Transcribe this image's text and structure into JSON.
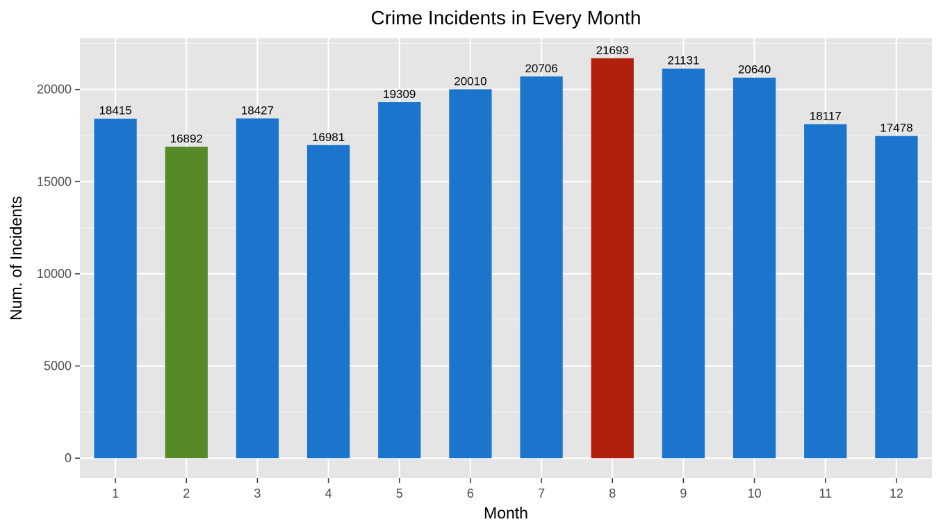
{
  "chart_data": {
    "type": "bar",
    "title": "Crime Incidents in Every Month",
    "xlabel": "Month",
    "ylabel": "Num. of Incidents",
    "categories": [
      "1",
      "2",
      "3",
      "4",
      "5",
      "6",
      "7",
      "8",
      "9",
      "10",
      "11",
      "12"
    ],
    "values": [
      18415,
      16892,
      18427,
      16981,
      19309,
      20010,
      20706,
      21693,
      21131,
      20640,
      18117,
      17478
    ],
    "data_labels": [
      "18415",
      "16892",
      "18427",
      "16981",
      "19309",
      "20010",
      "20706",
      "21693",
      "21131",
      "20640",
      "18117",
      "17478"
    ],
    "y_ticks": [
      0,
      5000,
      10000,
      15000,
      20000
    ],
    "y_tick_labels": [
      "0",
      "5000",
      "10000",
      "15000",
      "20000"
    ],
    "ylim": [
      -1085,
      22778
    ],
    "grid": true,
    "legend": "none",
    "colors": {
      "default": "#1c75cd",
      "minimum": "#568a28",
      "maximum": "#b0200c",
      "panel_background": "#e5e5e5",
      "grid_major": "#ffffff",
      "grid_minor": "#f2f2f2"
    },
    "bar_colors": [
      "#1c75cd",
      "#568a28",
      "#1c75cd",
      "#1c75cd",
      "#1c75cd",
      "#1c75cd",
      "#1c75cd",
      "#b0200c",
      "#1c75cd",
      "#1c75cd",
      "#1c75cd",
      "#1c75cd"
    ]
  }
}
